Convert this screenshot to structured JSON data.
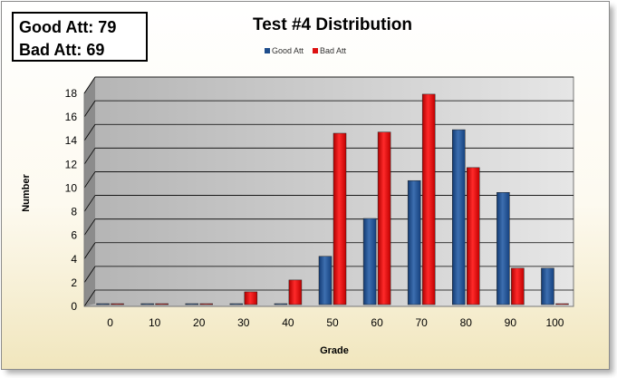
{
  "stats": {
    "good_line": "Good Att: 79",
    "bad_line": "Bad Att: 69"
  },
  "chart_data": {
    "type": "bar",
    "title": "Test #4 Distribution",
    "xlabel": "Grade",
    "ylabel": "Number",
    "ylim": [
      0,
      18
    ],
    "yticks": [
      0,
      2,
      4,
      6,
      8,
      10,
      12,
      14,
      16,
      18
    ],
    "grid": true,
    "legend": "top-center",
    "categories": [
      "0",
      "10",
      "20",
      "30",
      "40",
      "50",
      "60",
      "70",
      "80",
      "90",
      "100"
    ],
    "series": [
      {
        "name": "Good Att",
        "color": "#1f4e8c",
        "values": [
          0,
          0,
          0,
          0,
          0,
          4,
          7.2,
          10.4,
          14.7,
          9.4,
          3
        ]
      },
      {
        "name": "Bad Att",
        "color": "#dd1111",
        "values": [
          0,
          0,
          0,
          1,
          2,
          14.4,
          14.5,
          17.7,
          11.5,
          3,
          0
        ]
      }
    ]
  }
}
